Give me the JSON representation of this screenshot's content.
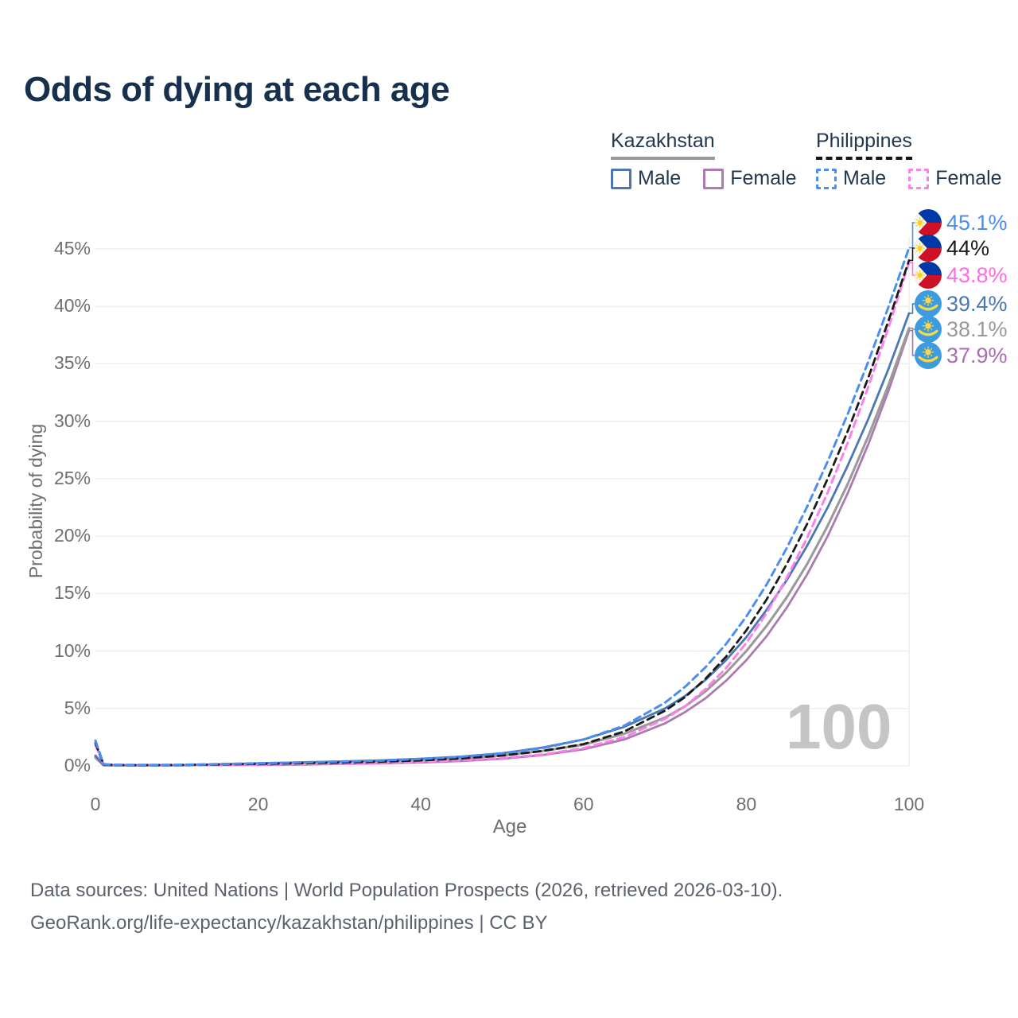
{
  "title": "Odds of dying at each age",
  "watermark_age": "100",
  "legend": {
    "groups": [
      {
        "country": "Kazakhstan",
        "line_style": "solid",
        "underline_color": "#9a9a9a",
        "items": [
          {
            "label": "Male",
            "color": "#4b77b2",
            "dashed": false
          },
          {
            "label": "Female",
            "color": "#ab7ab0",
            "dashed": false
          }
        ]
      },
      {
        "country": "Philippines",
        "line_style": "dashed",
        "underline_color": "#161616",
        "items": [
          {
            "label": "Male",
            "color": "#4b8ef0",
            "dashed": true
          },
          {
            "label": "Female",
            "color": "#fb80ea",
            "dashed": true
          }
        ]
      }
    ]
  },
  "end_labels": [
    {
      "value": "45.1%",
      "numeric": 45.1,
      "color": "#4b8ef0",
      "flag": "ph",
      "series": "Philippines Male"
    },
    {
      "value": "44%",
      "numeric": 44.0,
      "color": "#1a1a1a",
      "flag": "ph",
      "series": "Philippines Total"
    },
    {
      "value": "43.8%",
      "numeric": 43.8,
      "color": "#fb6ee4",
      "flag": "ph",
      "series": "Philippines Female"
    },
    {
      "value": "39.4%",
      "numeric": 39.4,
      "color": "#4b77b2",
      "flag": "kz",
      "series": "Kazakhstan Male"
    },
    {
      "value": "38.1%",
      "numeric": 38.1,
      "color": "#999999",
      "flag": "kz",
      "series": "Kazakhstan Total"
    },
    {
      "value": "37.9%",
      "numeric": 37.9,
      "color": "#a96cb0",
      "flag": "kz",
      "series": "Kazakhstan Female"
    }
  ],
  "footer": {
    "line1": "Data sources: United Nations | World Population Prospects (2026, retrieved 2026-03-10).",
    "line2": "GeoRank.org/life-expectancy/kazakhstan/philippines | CC BY"
  },
  "chart_data": {
    "type": "line",
    "title": "Odds of dying at each age",
    "xlabel": "Age",
    "ylabel": "Probability of dying",
    "xlim": [
      0,
      100
    ],
    "ylim": [
      0,
      45
    ],
    "x_ticks": [
      0,
      20,
      40,
      60,
      80,
      100
    ],
    "y_ticks": [
      0,
      5,
      10,
      15,
      20,
      25,
      30,
      35,
      40,
      45
    ],
    "y_unit": "%",
    "grid": "horizontal",
    "legend_position": "top-right",
    "series": [
      {
        "name": "Kazakhstan Female",
        "color": "#ab7ab0",
        "dashed": false,
        "width": 2.8,
        "points": [
          [
            0,
            0.7
          ],
          [
            1,
            0.05
          ],
          [
            2,
            0.04
          ],
          [
            5,
            0.03
          ],
          [
            10,
            0.04
          ],
          [
            15,
            0.07
          ],
          [
            20,
            0.09
          ],
          [
            25,
            0.12
          ],
          [
            30,
            0.17
          ],
          [
            35,
            0.22
          ],
          [
            40,
            0.3
          ],
          [
            45,
            0.42
          ],
          [
            50,
            0.62
          ],
          [
            55,
            0.95
          ],
          [
            60,
            1.45
          ],
          [
            65,
            2.3
          ],
          [
            70,
            3.7
          ],
          [
            72.5,
            4.7
          ],
          [
            75,
            5.9
          ],
          [
            77.5,
            7.4
          ],
          [
            80,
            9.2
          ],
          [
            82.5,
            11.3
          ],
          [
            85,
            13.8
          ],
          [
            87.5,
            16.7
          ],
          [
            90,
            20.0
          ],
          [
            92.5,
            23.8
          ],
          [
            95,
            28.0
          ],
          [
            97.5,
            32.7
          ],
          [
            100,
            37.9
          ]
        ]
      },
      {
        "name": "Kazakhstan Total",
        "color": "#9a9a9a",
        "dashed": false,
        "width": 3.1,
        "points": [
          [
            0,
            0.8
          ],
          [
            1,
            0.07
          ],
          [
            2,
            0.05
          ],
          [
            5,
            0.04
          ],
          [
            10,
            0.05
          ],
          [
            15,
            0.1
          ],
          [
            20,
            0.15
          ],
          [
            25,
            0.21
          ],
          [
            30,
            0.28
          ],
          [
            35,
            0.36
          ],
          [
            40,
            0.47
          ],
          [
            45,
            0.63
          ],
          [
            50,
            0.9
          ],
          [
            55,
            1.3
          ],
          [
            60,
            1.85
          ],
          [
            65,
            2.8
          ],
          [
            70,
            4.2
          ],
          [
            72.5,
            5.2
          ],
          [
            75,
            6.5
          ],
          [
            77.5,
            8.1
          ],
          [
            80,
            10.0
          ],
          [
            82.5,
            12.2
          ],
          [
            85,
            14.7
          ],
          [
            87.5,
            17.6
          ],
          [
            90,
            20.9
          ],
          [
            92.5,
            24.6
          ],
          [
            95,
            28.7
          ],
          [
            97.5,
            33.2
          ],
          [
            100,
            38.1
          ]
        ]
      },
      {
        "name": "Kazakhstan Male",
        "color": "#4b77b2",
        "dashed": false,
        "width": 2.8,
        "points": [
          [
            0,
            0.9
          ],
          [
            1,
            0.08
          ],
          [
            2,
            0.06
          ],
          [
            5,
            0.05
          ],
          [
            10,
            0.06
          ],
          [
            15,
            0.13
          ],
          [
            20,
            0.22
          ],
          [
            25,
            0.3
          ],
          [
            30,
            0.38
          ],
          [
            35,
            0.48
          ],
          [
            40,
            0.62
          ],
          [
            45,
            0.8
          ],
          [
            50,
            1.1
          ],
          [
            55,
            1.6
          ],
          [
            60,
            2.3
          ],
          [
            65,
            3.4
          ],
          [
            70,
            5.0
          ],
          [
            72.5,
            6.1
          ],
          [
            75,
            7.5
          ],
          [
            77.5,
            9.2
          ],
          [
            80,
            11.2
          ],
          [
            82.5,
            13.6
          ],
          [
            85,
            16.2
          ],
          [
            87.5,
            19.2
          ],
          [
            90,
            22.5
          ],
          [
            92.5,
            26.2
          ],
          [
            95,
            30.2
          ],
          [
            97.5,
            34.6
          ],
          [
            100,
            39.4
          ]
        ]
      },
      {
        "name": "Philippines Female",
        "color": "#fb80ea",
        "dashed": true,
        "width": 3,
        "points": [
          [
            0,
            1.8
          ],
          [
            1,
            0.11
          ],
          [
            2,
            0.08
          ],
          [
            5,
            0.06
          ],
          [
            10,
            0.07
          ],
          [
            15,
            0.09
          ],
          [
            20,
            0.12
          ],
          [
            25,
            0.16
          ],
          [
            30,
            0.21
          ],
          [
            35,
            0.27
          ],
          [
            40,
            0.35
          ],
          [
            45,
            0.48
          ],
          [
            50,
            0.68
          ],
          [
            55,
            1.0
          ],
          [
            60,
            1.55
          ],
          [
            65,
            2.5
          ],
          [
            70,
            4.1
          ],
          [
            72.5,
            5.2
          ],
          [
            75,
            6.7
          ],
          [
            77.5,
            8.5
          ],
          [
            80,
            10.7
          ],
          [
            82.5,
            13.3
          ],
          [
            85,
            16.4
          ],
          [
            87.5,
            19.9
          ],
          [
            90,
            23.8
          ],
          [
            92.5,
            28.2
          ],
          [
            95,
            33.0
          ],
          [
            97.5,
            38.2
          ],
          [
            100,
            43.8
          ]
        ]
      },
      {
        "name": "Philippines Total",
        "color": "#1a1a1a",
        "dashed": true,
        "width": 2.8,
        "points": [
          [
            0,
            2.0
          ],
          [
            1,
            0.13
          ],
          [
            2,
            0.09
          ],
          [
            5,
            0.07
          ],
          [
            10,
            0.08
          ],
          [
            15,
            0.12
          ],
          [
            20,
            0.18
          ],
          [
            25,
            0.23
          ],
          [
            30,
            0.29
          ],
          [
            35,
            0.37
          ],
          [
            40,
            0.48
          ],
          [
            45,
            0.65
          ],
          [
            50,
            0.9
          ],
          [
            55,
            1.3
          ],
          [
            60,
            1.9
          ],
          [
            65,
            3.0
          ],
          [
            70,
            4.8
          ],
          [
            72.5,
            6.0
          ],
          [
            75,
            7.6
          ],
          [
            77.5,
            9.5
          ],
          [
            80,
            11.8
          ],
          [
            82.5,
            14.5
          ],
          [
            85,
            17.6
          ],
          [
            87.5,
            21.1
          ],
          [
            90,
            25.0
          ],
          [
            92.5,
            29.2
          ],
          [
            95,
            33.8
          ],
          [
            97.5,
            38.8
          ],
          [
            100,
            44.0
          ]
        ]
      },
      {
        "name": "Philippines Male",
        "color": "#4b8ef0",
        "dashed": true,
        "width": 3,
        "points": [
          [
            0,
            2.2
          ],
          [
            1,
            0.15
          ],
          [
            2,
            0.1
          ],
          [
            5,
            0.08
          ],
          [
            10,
            0.09
          ],
          [
            15,
            0.15
          ],
          [
            20,
            0.23
          ],
          [
            25,
            0.3
          ],
          [
            30,
            0.38
          ],
          [
            35,
            0.47
          ],
          [
            40,
            0.6
          ],
          [
            45,
            0.8
          ],
          [
            50,
            1.1
          ],
          [
            55,
            1.55
          ],
          [
            60,
            2.3
          ],
          [
            65,
            3.5
          ],
          [
            70,
            5.5
          ],
          [
            72.5,
            6.9
          ],
          [
            75,
            8.6
          ],
          [
            77.5,
            10.6
          ],
          [
            80,
            13.0
          ],
          [
            82.5,
            15.8
          ],
          [
            85,
            19.0
          ],
          [
            87.5,
            22.6
          ],
          [
            90,
            26.5
          ],
          [
            92.5,
            30.7
          ],
          [
            95,
            35.2
          ],
          [
            97.5,
            40.0
          ],
          [
            100,
            45.1
          ]
        ]
      }
    ]
  }
}
